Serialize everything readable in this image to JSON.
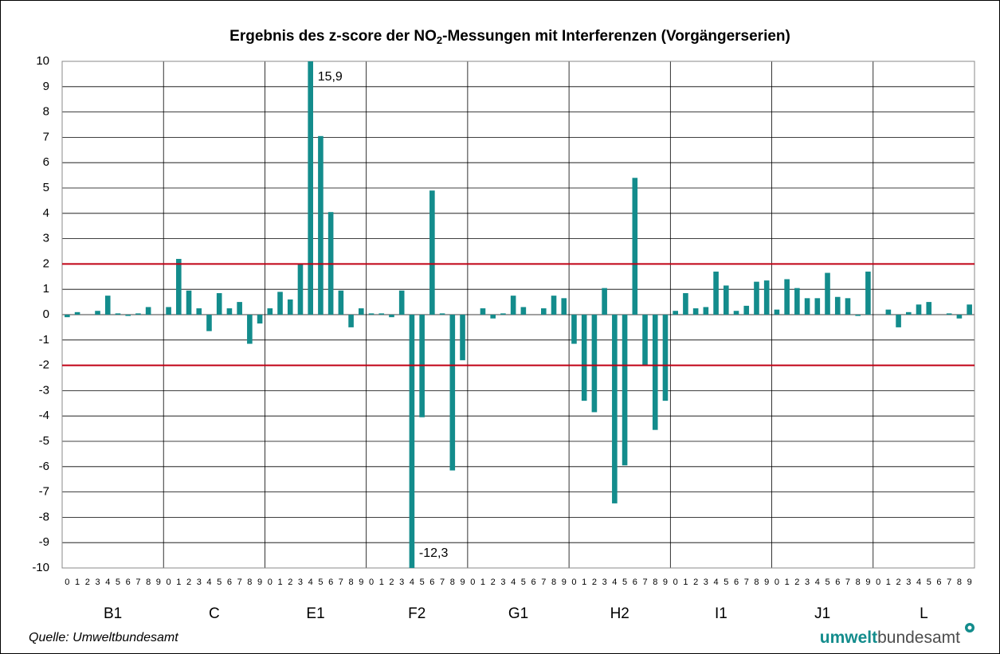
{
  "chart_data": {
    "type": "bar",
    "title_parts": [
      "Ergebnis des z-score der NO",
      "2",
      "-Messungen mit Interferenzen (Vorgängerserien)"
    ],
    "groups": [
      "B1",
      "C",
      "E1",
      "F2",
      "G1",
      "H2",
      "I1",
      "J1",
      "L"
    ],
    "categories": [
      "0",
      "1",
      "2",
      "3",
      "4",
      "5",
      "6",
      "7",
      "8",
      "9",
      "0",
      "1",
      "2",
      "3",
      "4",
      "5",
      "6",
      "7",
      "8",
      "9",
      "0",
      "1",
      "2",
      "3",
      "4",
      "5",
      "6",
      "7",
      "8",
      "9",
      "0",
      "1",
      "2",
      "3",
      "4",
      "5",
      "6",
      "7",
      "8",
      "9",
      "0",
      "1",
      "2",
      "3",
      "4",
      "5",
      "6",
      "7",
      "8",
      "9",
      "0",
      "1",
      "2",
      "3",
      "4",
      "5",
      "6",
      "7",
      "8",
      "9",
      "0",
      "1",
      "2",
      "3",
      "4",
      "5",
      "6",
      "7",
      "8",
      "9",
      "0",
      "1",
      "2",
      "3",
      "4",
      "5",
      "6",
      "7",
      "8",
      "9",
      "0",
      "1",
      "2",
      "3",
      "4",
      "5",
      "6",
      "7",
      "8",
      "9"
    ],
    "values": [
      -0.1,
      0.1,
      0,
      0.15,
      0.75,
      0.05,
      -0.05,
      0.05,
      0.3,
      0,
      0.3,
      2.2,
      0.95,
      0.25,
      -0.65,
      0.85,
      0.25,
      0.5,
      -1.15,
      -0.35,
      0.25,
      0.9,
      0.6,
      2.0,
      15.9,
      7.05,
      4.05,
      0.95,
      -0.5,
      0.25,
      0.05,
      0.05,
      -0.1,
      0.95,
      -12.3,
      -4.05,
      4.9,
      0.05,
      -6.15,
      -1.8,
      0,
      0.25,
      -0.15,
      0.05,
      0.75,
      0.3,
      0,
      0.25,
      0.75,
      0.65,
      -1.15,
      -3.4,
      -3.85,
      1.05,
      -7.45,
      -5.95,
      5.4,
      -2.0,
      -4.55,
      -3.4,
      0.15,
      0.85,
      0.25,
      0.3,
      1.7,
      1.15,
      0.15,
      0.35,
      1.3,
      1.35,
      0.2,
      1.4,
      1.05,
      0.65,
      0.65,
      1.65,
      0.7,
      0.65,
      -0.05,
      1.7,
      0,
      0.2,
      -0.5,
      0.1,
      0.4,
      0.5,
      0,
      0.05,
      -0.15,
      0.4
    ],
    "value_labels": [
      null,
      null,
      null,
      null,
      null,
      null,
      null,
      null,
      null,
      null,
      null,
      null,
      null,
      null,
      null,
      null,
      null,
      null,
      null,
      null,
      null,
      null,
      null,
      null,
      "15,9",
      null,
      null,
      null,
      null,
      null,
      null,
      null,
      null,
      null,
      "-12,3",
      null,
      null,
      null,
      null,
      null,
      null,
      null,
      null,
      null,
      null,
      null,
      null,
      null,
      null,
      null,
      null,
      null,
      null,
      null,
      null,
      null,
      null,
      null,
      null,
      null,
      null,
      null,
      null,
      null,
      null,
      null,
      null,
      null,
      null,
      null,
      null,
      null,
      null,
      null,
      null,
      null,
      null,
      null,
      null,
      null,
      null,
      null,
      null,
      null,
      null,
      null,
      null,
      null,
      null,
      null
    ],
    "color": "#138c8c",
    "ylim": [
      -10,
      10
    ],
    "yticks": [
      -10,
      -9,
      -8,
      -7,
      -6,
      -5,
      -4,
      -3,
      -2,
      -1,
      0,
      1,
      2,
      3,
      4,
      5,
      6,
      7,
      8,
      9,
      10
    ],
    "grid": true,
    "reference_lines": [
      2,
      -2
    ],
    "reference_color": "#c00014",
    "source": "Quelle: Umweltbundesamt",
    "logo": [
      "umwelt",
      "bundesamt"
    ]
  }
}
